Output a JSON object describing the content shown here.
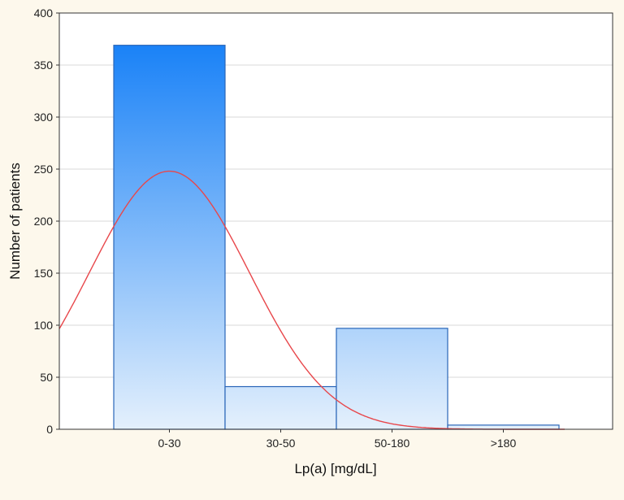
{
  "chart_data": {
    "type": "bar",
    "title": "",
    "xlabel": "Lp(a) [mg/dL]",
    "ylabel": "Number of patients",
    "categories": [
      "0-30",
      "30-50",
      "50-180",
      ">180"
    ],
    "values": [
      369,
      41,
      97,
      4
    ],
    "ylim": [
      0,
      400
    ],
    "yticks": [
      0,
      50,
      100,
      150,
      200,
      250,
      300,
      350,
      400
    ],
    "grid": true,
    "fit_curve": {
      "type": "normal",
      "peak_value": 248,
      "peak_position_bar_index": 0.5,
      "sigma_in_bar_widths": 0.72
    },
    "colors": {
      "bar_top": "#1a82f7",
      "bar_bottom": "#e4f0fc",
      "bar_border": "#2a66b8",
      "curve": "#e8474b",
      "grid": "#d8d8d8",
      "plot_bg": "#ffffff",
      "page_bg": "#fdf8ec"
    }
  }
}
